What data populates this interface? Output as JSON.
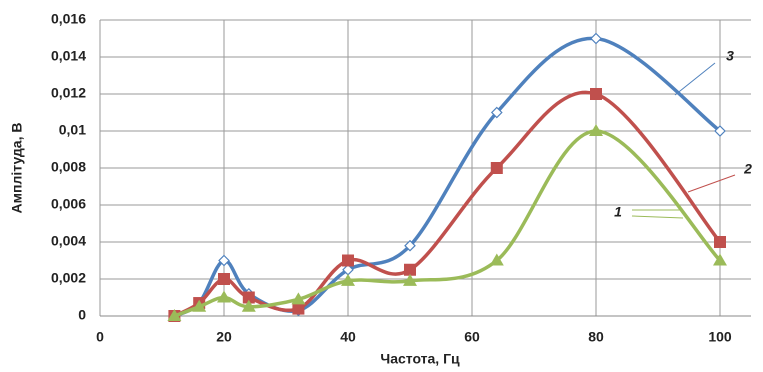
{
  "chart_data": {
    "type": "line",
    "x_label": "Частота, Гц",
    "y_label": "Амплітуда, В",
    "x": [
      12,
      16,
      20,
      24,
      32,
      40,
      50,
      64,
      80,
      100
    ],
    "series": [
      {
        "name": "3",
        "color": "#4f81bd",
        "marker": "diamond",
        "values": [
          0,
          0.0007,
          0.003,
          0.0012,
          0.0003,
          0.0025,
          0.0038,
          0.011,
          0.015,
          0.01
        ]
      },
      {
        "name": "2",
        "color": "#c0504d",
        "marker": "square",
        "values": [
          0,
          0.0007,
          0.002,
          0.001,
          0.0004,
          0.003,
          0.0025,
          0.008,
          0.012,
          0.004
        ]
      },
      {
        "name": "1",
        "color": "#9bbb59",
        "marker": "triangle",
        "values": [
          0,
          0.0005,
          0.001,
          0.0005,
          0.0009,
          0.0019,
          0.0019,
          0.003,
          0.01,
          0.003
        ]
      }
    ],
    "xlim": [
      0,
      105
    ],
    "xticks": [
      0,
      20,
      40,
      60,
      80,
      100
    ],
    "ylim": [
      0,
      0.016
    ],
    "yticks": [
      0,
      {
        "value": 0.002,
        "label": "0,002"
      },
      {
        "value": 0.004,
        "label": "0,004"
      },
      {
        "value": 0.006,
        "label": "0,006"
      },
      {
        "value": 0.008,
        "label": "0,008"
      },
      {
        "value": 0.01,
        "label": "0,01"
      },
      {
        "value": 0.012,
        "label": "0,012"
      },
      {
        "value": 0.014,
        "label": "0,014"
      },
      {
        "value": 0.016,
        "label": "0,016"
      }
    ],
    "grid": true
  }
}
